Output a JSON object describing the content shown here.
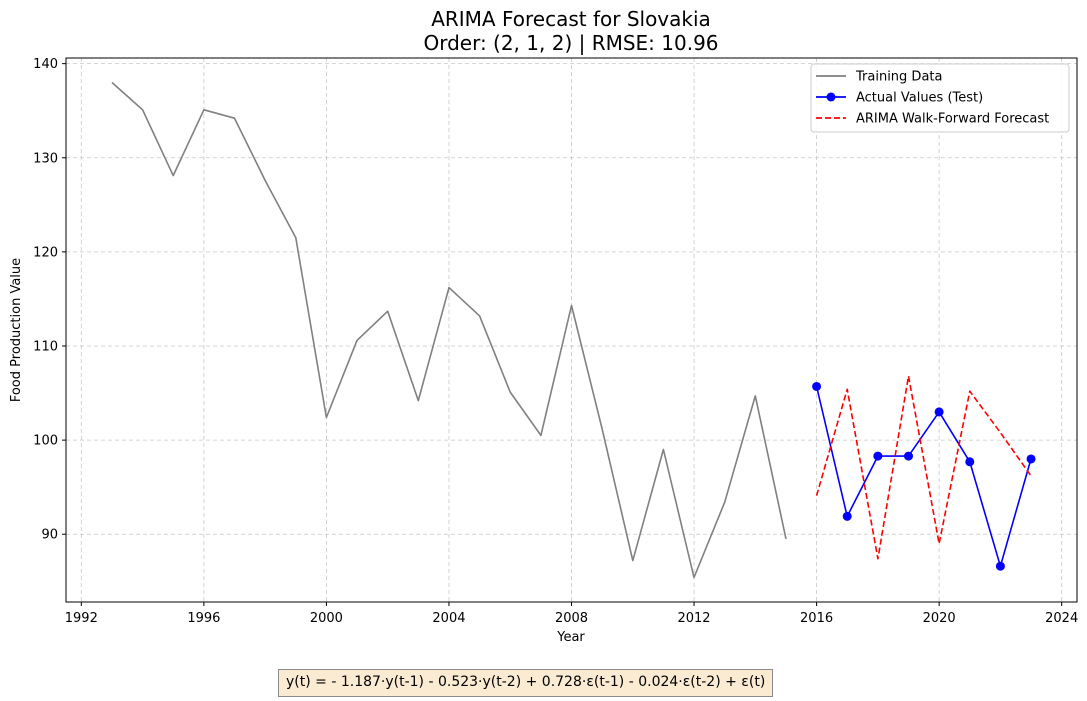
{
  "chart_data": {
    "type": "line",
    "title": "ARIMA Forecast for Slovakia",
    "subtitle": "Order: (2, 1, 2) | RMSE: 10.96",
    "xlabel": "Year",
    "ylabel": "Food Production Value",
    "xlim": [
      1991.5,
      2024.5
    ],
    "ylim": [
      82.8,
      140.6
    ],
    "xticks": [
      1992,
      1996,
      2000,
      2004,
      2008,
      2012,
      2016,
      2020,
      2024
    ],
    "yticks": [
      90,
      100,
      110,
      120,
      130,
      140
    ],
    "grid": true,
    "legend_position": "top-right",
    "series": [
      {
        "name": "Training Data",
        "color": "#808080",
        "style": "solid",
        "markers": false,
        "x": [
          1993,
          1994,
          1995,
          1996,
          1997,
          1998,
          1999,
          2000,
          2001,
          2002,
          2003,
          2004,
          2005,
          2006,
          2007,
          2008,
          2009,
          2010,
          2011,
          2012,
          2013,
          2014,
          2015
        ],
        "y": [
          138.0,
          135.1,
          128.1,
          135.1,
          134.2,
          127.6,
          121.5,
          102.4,
          110.6,
          113.7,
          104.2,
          116.2,
          113.2,
          105.1,
          100.5,
          114.3,
          101.2,
          87.2,
          99.0,
          85.4,
          93.4,
          104.7,
          89.5
        ]
      },
      {
        "name": "Actual Values (Test)",
        "color": "#0000ff",
        "style": "solid",
        "markers": true,
        "x": [
          2016,
          2017,
          2018,
          2019,
          2020,
          2021,
          2022,
          2023
        ],
        "y": [
          105.7,
          91.9,
          98.3,
          98.3,
          103.0,
          97.7,
          86.6,
          98.0
        ]
      },
      {
        "name": "ARIMA Walk-Forward Forecast",
        "color": "#ff0000",
        "style": "dashed",
        "markers": false,
        "x": [
          2016,
          2017,
          2018,
          2019,
          2020,
          2021,
          2022,
          2023
        ],
        "y": [
          94.1,
          105.4,
          87.4,
          106.8,
          89.0,
          105.2,
          100.8,
          96.2
        ]
      }
    ]
  },
  "equation": "y(t) = - 1.187·y(t-1) - 0.523·y(t-2) + 0.728·ε(t-1) - 0.024·ε(t-2) + ε(t)"
}
